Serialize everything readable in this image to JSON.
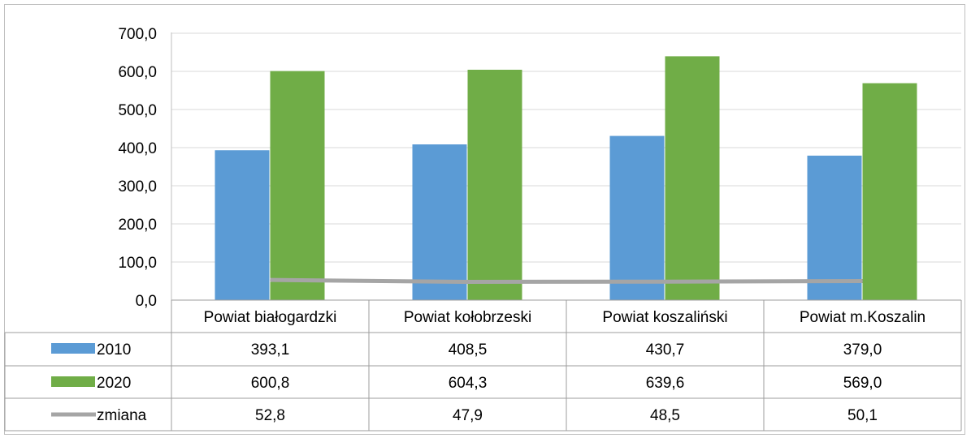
{
  "chart_data": {
    "type": "bar",
    "categories": [
      "Powiat białogardzki",
      "Powiat kołobrzeski",
      "Powiat koszaliński",
      "Powiat m.Koszalin"
    ],
    "series": [
      {
        "name": "2010",
        "kind": "bar",
        "color": "#5b9bd5",
        "values": [
          393.1,
          408.5,
          430.7,
          379.0
        ],
        "labels": [
          "393,1",
          "408,5",
          "430,7",
          "379,0"
        ]
      },
      {
        "name": "2020",
        "kind": "bar",
        "color": "#70ad47",
        "values": [
          600.8,
          604.3,
          639.6,
          569.0
        ],
        "labels": [
          "600,8",
          "604,3",
          "639,6",
          "569,0"
        ]
      },
      {
        "name": "zmiana",
        "kind": "line",
        "color": "#a5a5a5",
        "values": [
          52.8,
          47.9,
          48.5,
          50.1
        ],
        "labels": [
          "52,8",
          "47,9",
          "48,5",
          "50,1"
        ]
      }
    ],
    "yticks": [
      "0,0",
      "100,0",
      "200,0",
      "300,0",
      "400,0",
      "500,0",
      "600,0",
      "700,0"
    ],
    "ylim": [
      0,
      700
    ],
    "grid": true,
    "legend": "data-table"
  }
}
